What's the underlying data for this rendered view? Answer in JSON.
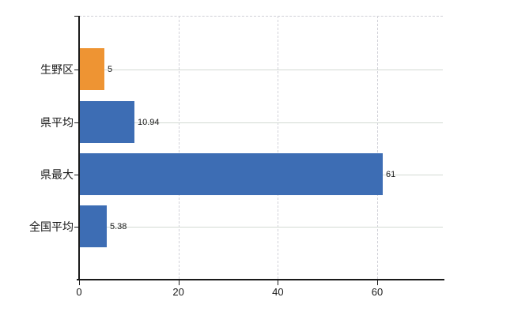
{
  "chart_data": {
    "type": "bar",
    "orientation": "horizontal",
    "title": "",
    "categories": [
      "生野区",
      "県平均",
      "県最大",
      "全国平均"
    ],
    "values": [
      5,
      10.94,
      61,
      5.38
    ],
    "value_labels": [
      "5",
      "10.94",
      "61",
      "5.38"
    ],
    "bar_colors": [
      "#ee9433",
      "#3d6db4",
      "#3d6db4",
      "#3d6db4"
    ],
    "highlight_color": "#ee9433",
    "default_color": "#3d6db4",
    "x_ticks": [
      "0",
      "20",
      "40",
      "60"
    ],
    "x_tick_values": [
      0,
      20,
      40,
      60
    ],
    "xlim": [
      0,
      73.5
    ],
    "grid": {
      "horizontal": "solid",
      "vertical": "dashed",
      "plot_top_border": "dashed"
    },
    "legend": "none",
    "background": "#ffffff"
  }
}
